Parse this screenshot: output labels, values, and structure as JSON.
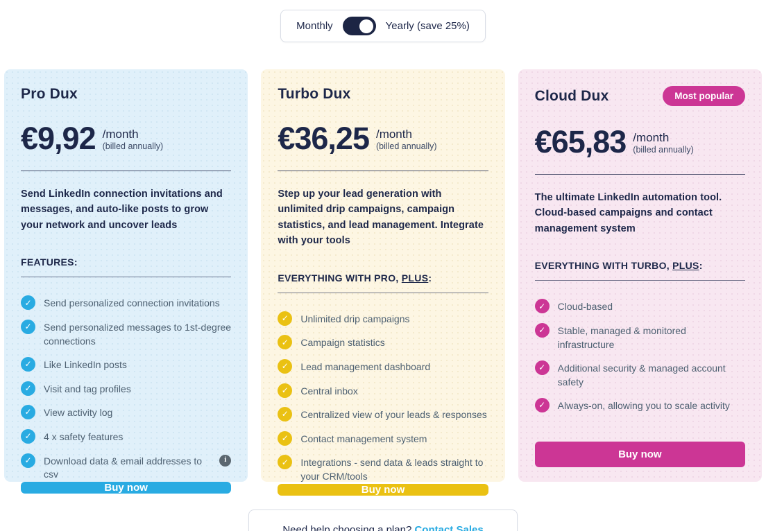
{
  "billing_toggle": {
    "monthly_label": "Monthly",
    "yearly_label": "Yearly (save 25%)",
    "state": "yearly"
  },
  "plans": [
    {
      "name": "Pro Dux",
      "badge": "",
      "price": "€9,92",
      "period": "/month",
      "billing_note": "(billed annually)",
      "description": "Send LinkedIn connection invitations and messages, and auto-like posts to grow your network and uncover leads",
      "features_heading": {
        "prefix": "FEATURES",
        "underlined": "",
        "suffix": ":"
      },
      "features": [
        {
          "text": "Send personalized connection invitations"
        },
        {
          "text": "Send personalized messages to 1st-degree connections"
        },
        {
          "text": "Like LinkedIn posts"
        },
        {
          "text": "Visit and tag profiles"
        },
        {
          "text": "View activity log"
        },
        {
          "text": "4 x safety features"
        },
        {
          "text": "Download data & email addresses to csv",
          "info_icon": true
        }
      ],
      "cta_label": "Buy now",
      "accent_color": "#29abe2",
      "background_color": "#e0f0fa"
    },
    {
      "name": "Turbo Dux",
      "badge": "",
      "price": "€36,25",
      "period": "/month",
      "billing_note": "(billed annually)",
      "description": "Step up your lead generation with unlimited drip campaigns, campaign statistics, and lead management. Integrate with your tools",
      "features_heading": {
        "prefix": "EVERYTHING WITH PRO, ",
        "underlined": "PLUS",
        "suffix": ":"
      },
      "features": [
        {
          "text": "Unlimited drip campaigns"
        },
        {
          "text": "Campaign statistics"
        },
        {
          "text": "Lead management dashboard"
        },
        {
          "text": "Central inbox"
        },
        {
          "text": "Centralized view of your leads & responses"
        },
        {
          "text": "Contact management system"
        },
        {
          "text": "Integrations - send data & leads straight to your CRM/tools"
        }
      ],
      "cta_label": "Buy now",
      "accent_color": "#eac113",
      "background_color": "#fdf6e3"
    },
    {
      "name": "Cloud Dux",
      "badge": "Most popular",
      "price": "€65,83",
      "period": "/month",
      "billing_note": "(billed annually)",
      "description": "The ultimate LinkedIn automation tool. Cloud-based campaigns and contact management system",
      "features_heading": {
        "prefix": "EVERYTHING WITH TURBO, ",
        "underlined": "PLUS",
        "suffix": ":"
      },
      "features": [
        {
          "text": "Cloud-based"
        },
        {
          "text": "Stable, managed & monitored infrastructure"
        },
        {
          "text": "Additional security & managed account safety"
        },
        {
          "text": "Always-on, allowing you to scale activity"
        }
      ],
      "cta_label": "Buy now",
      "accent_color": "#cc3695",
      "background_color": "#f8e7f1"
    }
  ],
  "icons": {
    "check": "✓",
    "info": "i"
  },
  "footer": {
    "help_text": "Need help choosing a plan? ",
    "contact_link_label": "Contact Sales"
  }
}
